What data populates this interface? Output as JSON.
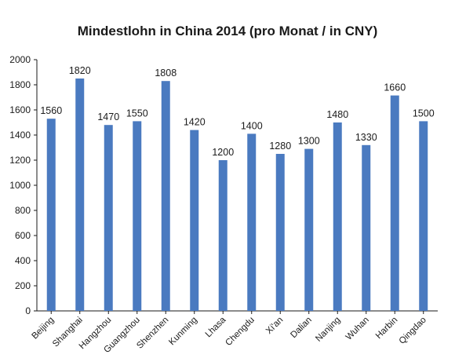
{
  "chart_data": {
    "type": "bar",
    "title": "Mindestlohn in China 2014 (pro Monat / in CNY)",
    "xlabel": "",
    "ylabel": "",
    "categories": [
      "Beijing",
      "Shanghai",
      "Hangzhou",
      "Guangzhou",
      "Shenzhen",
      "Kunming",
      "Lhasa",
      "Chengdu",
      "Xi'an",
      "Dalian",
      "Nanjing",
      "Wuhan",
      "Harbin",
      "Qingdao"
    ],
    "values": [
      1560,
      1820,
      1470,
      1550,
      1808,
      1420,
      1200,
      1400,
      1280,
      1300,
      1480,
      1330,
      1660,
      1500
    ],
    "data_labels": [
      "1560",
      "1820",
      "1470",
      "1550",
      "1808",
      "1420",
      "1200",
      "1400",
      "1280",
      "1300",
      "1480",
      "1330",
      "1660",
      "1500"
    ],
    "bar_heights": [
      1530,
      1850,
      1480,
      1510,
      1830,
      1440,
      1200,
      1410,
      1250,
      1290,
      1500,
      1320,
      1715,
      1510
    ],
    "ylim": [
      0,
      2000
    ],
    "yticks": [
      0,
      200,
      400,
      600,
      800,
      1000,
      1200,
      1400,
      1600,
      1800,
      2000
    ],
    "grid": false,
    "legend": "none",
    "bar_color": "#4a7ac0"
  }
}
